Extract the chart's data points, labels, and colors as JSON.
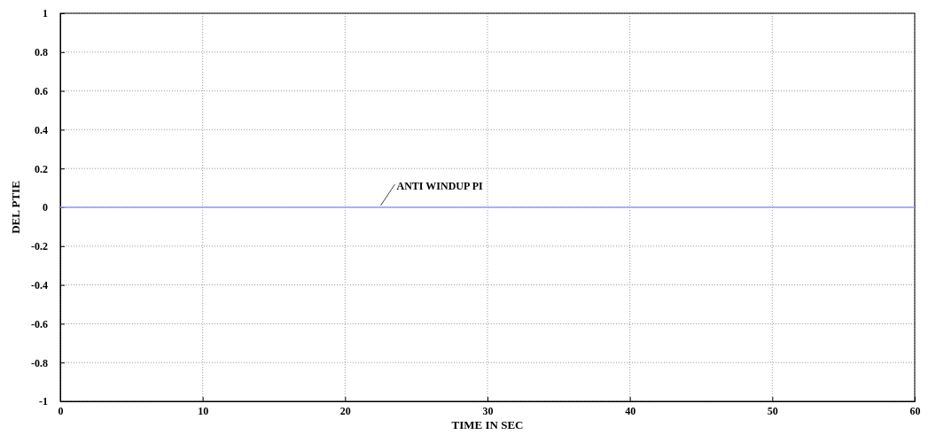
{
  "chart_data": {
    "type": "line",
    "xlabel": "TIME IN SEC",
    "ylabel": "DEL PTIE",
    "x": [
      0,
      60
    ],
    "series": [
      {
        "color": "#9a9af0",
        "values": [
          0,
          0
        ]
      }
    ],
    "xlim": [
      0,
      60
    ],
    "xticks": [
      0,
      10,
      20,
      30,
      40,
      50,
      60
    ],
    "ylim": [
      -1,
      1
    ],
    "yticks": [
      -1,
      -0.8,
      -0.6,
      -0.4,
      -0.2,
      0,
      0.2,
      0.4,
      0.6,
      0.8,
      1
    ],
    "grid": true,
    "marker": "none",
    "line_style": "solid",
    "annotations": [
      {
        "text": "ANTI WINDUP PI",
        "x": 22.5,
        "y": 0
      }
    ]
  }
}
